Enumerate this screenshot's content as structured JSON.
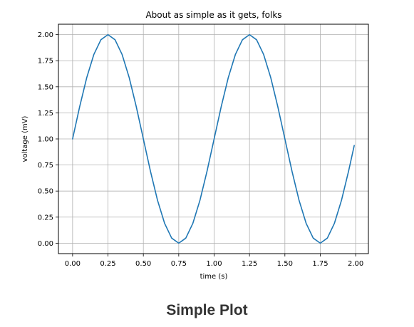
{
  "caption": "Simple Plot",
  "chart_data": {
    "type": "line",
    "title": "About as simple as it gets, folks",
    "xlabel": "time (s)",
    "ylabel": "voltage (mV)",
    "xlim": [
      -0.1,
      2.09
    ],
    "ylim": [
      -0.1,
      2.1
    ],
    "x_ticks": [
      "0.00",
      "0.25",
      "0.50",
      "0.75",
      "1.00",
      "1.25",
      "1.50",
      "1.75",
      "2.00"
    ],
    "y_ticks": [
      "0.00",
      "0.25",
      "0.50",
      "0.75",
      "1.00",
      "1.25",
      "1.50",
      "1.75",
      "2.00"
    ],
    "grid": true,
    "series": [
      {
        "color": "#1f77b4",
        "x": [
          0.0,
          0.05,
          0.1,
          0.15,
          0.2,
          0.25,
          0.3,
          0.35,
          0.4,
          0.45,
          0.5,
          0.55,
          0.6,
          0.65,
          0.7,
          0.75,
          0.8,
          0.85,
          0.9,
          0.95,
          1.0,
          1.05,
          1.1,
          1.15,
          1.2,
          1.25,
          1.3,
          1.35,
          1.4,
          1.45,
          1.5,
          1.55,
          1.6,
          1.65,
          1.7,
          1.75,
          1.8,
          1.85,
          1.9,
          1.95,
          1.99
        ],
        "y": [
          1.0,
          1.309,
          1.588,
          1.809,
          1.951,
          2.0,
          1.951,
          1.809,
          1.588,
          1.309,
          1.0,
          0.691,
          0.412,
          0.191,
          0.049,
          0.0,
          0.049,
          0.191,
          0.412,
          0.691,
          1.0,
          1.309,
          1.588,
          1.809,
          1.951,
          2.0,
          1.951,
          1.809,
          1.588,
          1.309,
          1.0,
          0.691,
          0.412,
          0.191,
          0.049,
          0.0,
          0.049,
          0.191,
          0.412,
          0.691,
          0.937
        ]
      }
    ]
  }
}
